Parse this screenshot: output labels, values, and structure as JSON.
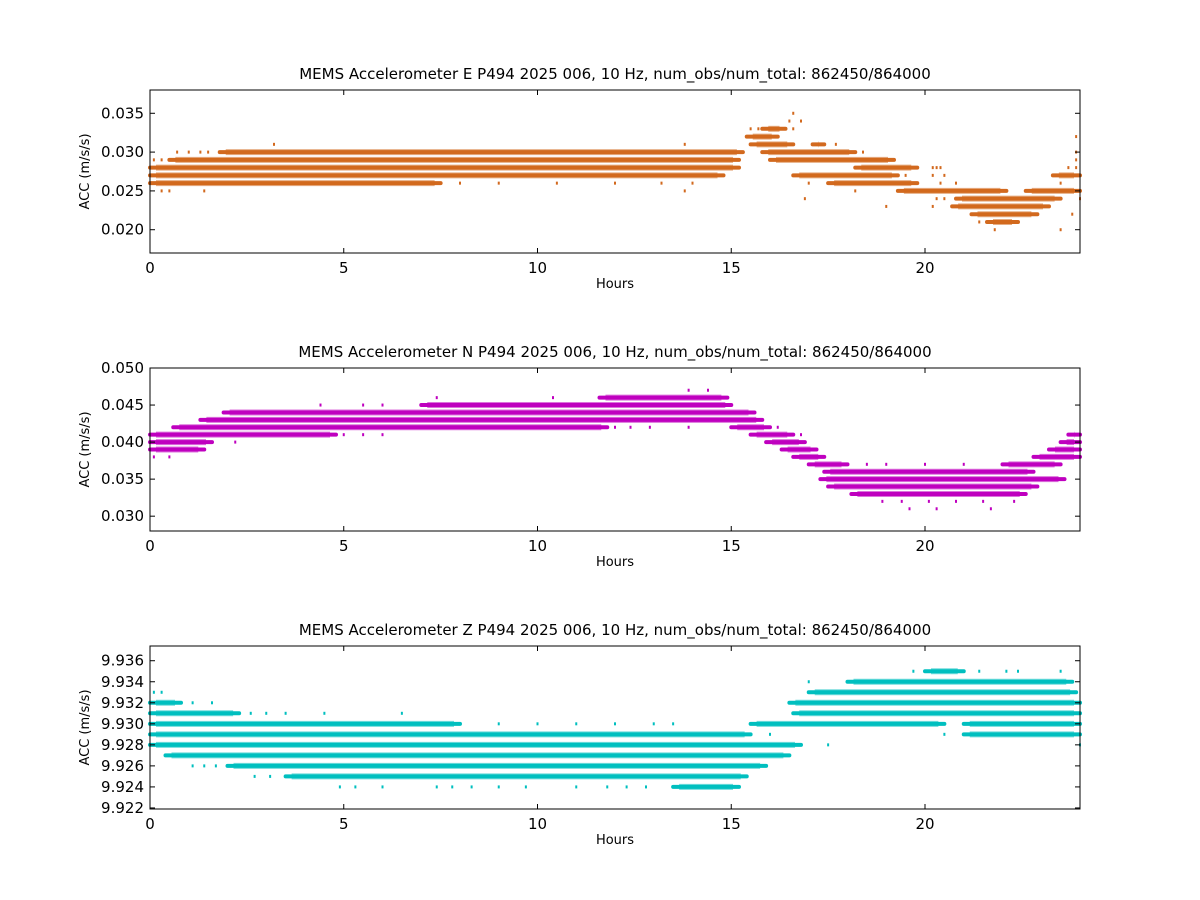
{
  "chart_data": [
    {
      "type": "scatter",
      "title": "MEMS Accelerometer E P494 2025 006, 10 Hz, num_obs/num_total: 862450/864000",
      "xlabel": "Hours",
      "ylabel": "ACC (m/s/s)",
      "xlim": [
        0,
        24
      ],
      "ylim": [
        0.017,
        0.038
      ],
      "xticks": [
        "0",
        "5",
        "10",
        "15",
        "20"
      ],
      "yticks": [
        "0.020",
        "0.025",
        "0.030",
        "0.035"
      ],
      "ytick_values": [
        0.02,
        0.025,
        0.03,
        0.035
      ],
      "color": "#d2691e",
      "grid": false,
      "series": [
        {
          "levels": [
            {
              "y": 0.035,
              "ranges": [],
              "dots": [
                16.6
              ]
            },
            {
              "y": 0.034,
              "ranges": [],
              "dots": [
                16.5,
                16.8
              ]
            },
            {
              "y": 0.033,
              "ranges": [
                [
                  15.8,
                  16.4
                ]
              ],
              "dots": [
                15.5,
                15.7,
                16.6
              ]
            },
            {
              "y": 0.032,
              "ranges": [
                [
                  15.4,
                  16.2
                ]
              ],
              "dots": [
                23.9
              ]
            },
            {
              "y": 0.031,
              "ranges": [
                [
                  15.5,
                  16.6
                ],
                [
                  17.1,
                  17.4
                ]
              ],
              "dots": [
                3.2,
                13.8,
                17.7
              ]
            },
            {
              "y": 0.03,
              "ranges": [
                [
                  1.8,
                  15.3
                ],
                [
                  15.8,
                  18.2
                ]
              ],
              "dots": [
                0.7,
                1.0,
                1.3,
                1.5,
                18.4,
                23.9
              ]
            },
            {
              "y": 0.029,
              "ranges": [
                [
                  0.5,
                  15.2
                ],
                [
                  16.0,
                  19.2
                ]
              ],
              "dots": [
                0.1,
                0.3,
                23.9
              ]
            },
            {
              "y": 0.028,
              "ranges": [
                [
                  0,
                  15.2
                ],
                [
                  18.2,
                  19.8
                ]
              ],
              "dots": [
                20.2,
                20.3,
                20.4,
                23.7,
                23.9
              ]
            },
            {
              "y": 0.027,
              "ranges": [
                [
                  0,
                  14.8
                ],
                [
                  16.6,
                  19.3
                ],
                [
                  23.3,
                  24
                ]
              ],
              "dots": [
                19.5,
                20.2,
                20.5
              ]
            },
            {
              "y": 0.026,
              "ranges": [
                [
                  0,
                  7.5
                ],
                [
                  17.5,
                  19.8
                ]
              ],
              "dots": [
                8.0,
                9.0,
                10.5,
                12.0,
                13.2,
                14.0,
                17.0,
                20.4,
                20.8,
                23.5
              ]
            },
            {
              "y": 0.025,
              "ranges": [
                [
                  19.3,
                  22.1
                ],
                [
                  22.6,
                  24
                ]
              ],
              "dots": [
                0.3,
                0.5,
                1.4,
                13.8,
                18.2
              ]
            },
            {
              "y": 0.024,
              "ranges": [
                [
                  20.8,
                  23.5
                ]
              ],
              "dots": [
                16.9,
                20.3,
                20.5,
                24.0
              ]
            },
            {
              "y": 0.023,
              "ranges": [
                [
                  20.7,
                  23.2
                ]
              ],
              "dots": [
                19.0,
                20.2
              ]
            },
            {
              "y": 0.022,
              "ranges": [
                [
                  21.2,
                  22.9
                ]
              ],
              "dots": [
                23.8
              ]
            },
            {
              "y": 0.021,
              "ranges": [
                [
                  21.6,
                  22.4
                ]
              ],
              "dots": [
                21.4
              ]
            },
            {
              "y": 0.02,
              "ranges": [],
              "dots": [
                21.8,
                23.5
              ]
            }
          ]
        }
      ]
    },
    {
      "type": "scatter",
      "title": "MEMS Accelerometer N P494 2025 006, 10 Hz, num_obs/num_total: 862450/864000",
      "xlabel": "Hours",
      "ylabel": "ACC (m/s/s)",
      "xlim": [
        0,
        24
      ],
      "ylim": [
        0.028,
        0.05
      ],
      "xticks": [
        "0",
        "5",
        "10",
        "15",
        "20"
      ],
      "yticks": [
        "0.030",
        "0.035",
        "0.040",
        "0.045",
        "0.050"
      ],
      "ytick_values": [
        0.03,
        0.035,
        0.04,
        0.045,
        0.05
      ],
      "color": "#bf00bf",
      "grid": false,
      "series": [
        {
          "levels": [
            {
              "y": 0.047,
              "ranges": [],
              "dots": [
                13.9,
                14.4
              ]
            },
            {
              "y": 0.046,
              "ranges": [
                [
                  11.6,
                  14.9
                ]
              ],
              "dots": [
                7.4,
                10.4
              ]
            },
            {
              "y": 0.045,
              "ranges": [
                [
                  7.0,
                  15.0
                ]
              ],
              "dots": [
                4.4,
                5.5,
                6.0
              ]
            },
            {
              "y": 0.044,
              "ranges": [
                [
                  1.9,
                  15.6
                ]
              ],
              "dots": []
            },
            {
              "y": 0.043,
              "ranges": [
                [
                  1.3,
                  15.8
                ]
              ],
              "dots": []
            },
            {
              "y": 0.042,
              "ranges": [
                [
                  0.6,
                  11.8
                ],
                [
                  15.0,
                  16.0
                ]
              ],
              "dots": [
                12.0,
                12.4,
                12.9,
                13.9,
                16.2
              ]
            },
            {
              "y": 0.041,
              "ranges": [
                [
                  0,
                  4.8
                ],
                [
                  15.5,
                  16.6
                ],
                [
                  23.7,
                  24
                ]
              ],
              "dots": [
                5.0,
                5.5,
                6.0,
                16.8,
                23.9
              ]
            },
            {
              "y": 0.04,
              "ranges": [
                [
                  0,
                  1.6
                ],
                [
                  15.9,
                  16.9
                ],
                [
                  23.5,
                  24
                ]
              ],
              "dots": [
                2.2
              ]
            },
            {
              "y": 0.039,
              "ranges": [
                [
                  0,
                  1.4
                ],
                [
                  16.3,
                  17.2
                ],
                [
                  23.2,
                  24
                ]
              ],
              "dots": []
            },
            {
              "y": 0.038,
              "ranges": [
                [
                  16.6,
                  17.4
                ],
                [
                  22.8,
                  24
                ]
              ],
              "dots": [
                0.1,
                0.5
              ]
            },
            {
              "y": 0.037,
              "ranges": [
                [
                  17.0,
                  18.0
                ],
                [
                  22.0,
                  23.5
                ]
              ],
              "dots": [
                18.5,
                19.0,
                20.0,
                21.0
              ]
            },
            {
              "y": 0.036,
              "ranges": [
                [
                  17.4,
                  22.8
                ]
              ],
              "dots": []
            },
            {
              "y": 0.035,
              "ranges": [
                [
                  17.3,
                  23.6
                ]
              ],
              "dots": []
            },
            {
              "y": 0.034,
              "ranges": [
                [
                  17.5,
                  22.9
                ]
              ],
              "dots": []
            },
            {
              "y": 0.033,
              "ranges": [
                [
                  18.1,
                  22.6
                ]
              ],
              "dots": []
            },
            {
              "y": 0.032,
              "ranges": [],
              "dots": [
                18.9,
                19.4,
                20.1,
                20.8,
                21.5,
                22.3
              ]
            },
            {
              "y": 0.031,
              "ranges": [],
              "dots": [
                19.6,
                20.3,
                21.7
              ]
            }
          ]
        }
      ]
    },
    {
      "type": "scatter",
      "title": "MEMS Accelerometer Z P494 2025 006, 10 Hz, num_obs/num_total: 862450/864000",
      "xlabel": "Hours",
      "ylabel": "ACC (m/s/s)",
      "xlim": [
        0,
        24
      ],
      "ylim": [
        9.9219,
        9.9374
      ],
      "xticks": [
        "0",
        "5",
        "10",
        "15",
        "20"
      ],
      "yticks": [
        "9.922",
        "9.924",
        "9.926",
        "9.928",
        "9.930",
        "9.932",
        "9.934",
        "9.936"
      ],
      "ytick_values": [
        9.922,
        9.924,
        9.926,
        9.928,
        9.93,
        9.932,
        9.934,
        9.936
      ],
      "color": "#00bfbf",
      "grid": false,
      "series": [
        {
          "levels": [
            {
              "y": 9.935,
              "ranges": [
                [
                  20.0,
                  21.0
                ]
              ],
              "dots": [
                19.7,
                21.4,
                22.1,
                22.4,
                23.5
              ]
            },
            {
              "y": 9.934,
              "ranges": [
                [
                  18.0,
                  23.8
                ]
              ],
              "dots": [
                17.0
              ]
            },
            {
              "y": 9.933,
              "ranges": [
                [
                  17.0,
                  23.9
                ]
              ],
              "dots": [
                0.1,
                0.3
              ]
            },
            {
              "y": 9.932,
              "ranges": [
                [
                  0,
                  0.8
                ],
                [
                  16.5,
                  24
                ]
              ],
              "dots": [
                1.1,
                1.6
              ]
            },
            {
              "y": 9.931,
              "ranges": [
                [
                  0,
                  2.3
                ],
                [
                  16.6,
                  24
                ]
              ],
              "dots": [
                2.6,
                3.0,
                3.5,
                4.5,
                6.5
              ]
            },
            {
              "y": 9.93,
              "ranges": [
                [
                  0,
                  8.0
                ],
                [
                  15.5,
                  20.5
                ],
                [
                  21.0,
                  24
                ]
              ],
              "dots": [
                9.0,
                10.0,
                11.0,
                12.0,
                13.0,
                13.5
              ]
            },
            {
              "y": 9.929,
              "ranges": [
                [
                  0,
                  15.5
                ],
                [
                  21.0,
                  24
                ]
              ],
              "dots": [
                16.0,
                20.5,
                23.9
              ]
            },
            {
              "y": 9.928,
              "ranges": [
                [
                  0,
                  16.8
                ]
              ],
              "dots": [
                17.5,
                24.0
              ]
            },
            {
              "y": 9.927,
              "ranges": [
                [
                  0.4,
                  16.5
                ]
              ],
              "dots": []
            },
            {
              "y": 9.926,
              "ranges": [
                [
                  2.0,
                  15.9
                ]
              ],
              "dots": [
                1.1,
                1.4,
                1.7
              ]
            },
            {
              "y": 9.925,
              "ranges": [
                [
                  3.5,
                  15.4
                ]
              ],
              "dots": [
                2.7,
                3.1
              ]
            },
            {
              "y": 9.924,
              "ranges": [
                [
                  13.5,
                  15.2
                ]
              ],
              "dots": [
                4.9,
                5.3,
                6.0,
                7.4,
                7.8,
                8.3,
                9.0,
                9.7,
                11.0,
                11.8,
                12.3,
                12.8
              ]
            }
          ]
        }
      ]
    }
  ]
}
